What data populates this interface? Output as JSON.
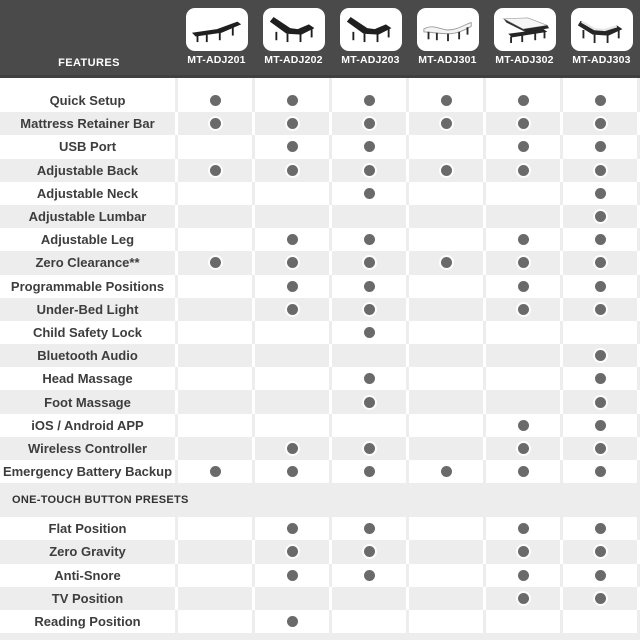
{
  "chart_data": {
    "type": "table",
    "row_header_label": "FEATURES",
    "columns": [
      {
        "label": "MT-ADJ201",
        "icon": "bed-flat-dark-icon"
      },
      {
        "label": "MT-ADJ202",
        "icon": "bed-lounge-dark-icon"
      },
      {
        "label": "MT-ADJ203",
        "icon": "bed-lounge-dark-icon"
      },
      {
        "label": "MT-ADJ301",
        "icon": "bed-flat-light-icon"
      },
      {
        "label": "MT-ADJ302",
        "icon": "bed-incline-light-icon"
      },
      {
        "label": "MT-ADJ303",
        "icon": "bed-lounge-light-icon"
      }
    ],
    "cell_marker": "dot-icon",
    "sections": [
      {
        "heading": null,
        "rows": [
          {
            "feature": "Quick Setup",
            "availability": [
              true,
              true,
              true,
              true,
              true,
              true
            ]
          },
          {
            "feature": "Mattress Retainer Bar",
            "availability": [
              true,
              true,
              true,
              true,
              true,
              true
            ]
          },
          {
            "feature": "USB Port",
            "availability": [
              false,
              true,
              true,
              false,
              true,
              true
            ]
          },
          {
            "feature": "Adjustable Back",
            "availability": [
              true,
              true,
              true,
              true,
              true,
              true
            ]
          },
          {
            "feature": "Adjustable Neck",
            "availability": [
              false,
              false,
              true,
              false,
              false,
              true
            ]
          },
          {
            "feature": "Adjustable Lumbar",
            "availability": [
              false,
              false,
              false,
              false,
              false,
              true
            ]
          },
          {
            "feature": "Adjustable Leg",
            "availability": [
              false,
              true,
              true,
              false,
              true,
              true
            ]
          },
          {
            "feature": "Zero Clearance**",
            "availability": [
              true,
              true,
              true,
              true,
              true,
              true
            ]
          },
          {
            "feature": "Programmable Positions",
            "availability": [
              false,
              true,
              true,
              false,
              true,
              true
            ]
          },
          {
            "feature": "Under-Bed Light",
            "availability": [
              false,
              true,
              true,
              false,
              true,
              true
            ]
          },
          {
            "feature": "Child Safety Lock",
            "availability": [
              false,
              false,
              true,
              false,
              false,
              false
            ]
          },
          {
            "feature": "Bluetooth Audio",
            "availability": [
              false,
              false,
              false,
              false,
              false,
              true
            ]
          },
          {
            "feature": "Head Massage",
            "availability": [
              false,
              false,
              true,
              false,
              false,
              true
            ]
          },
          {
            "feature": "Foot Massage",
            "availability": [
              false,
              false,
              true,
              false,
              false,
              true
            ]
          },
          {
            "feature": "iOS / Android APP",
            "availability": [
              false,
              false,
              false,
              false,
              true,
              true
            ]
          },
          {
            "feature": "Wireless Controller",
            "availability": [
              false,
              true,
              true,
              false,
              true,
              true
            ]
          },
          {
            "feature": "Emergency Battery Backup",
            "availability": [
              true,
              true,
              true,
              true,
              true,
              true
            ]
          }
        ]
      },
      {
        "heading": "ONE-TOUCH BUTTON PRESETS",
        "rows": [
          {
            "feature": "Flat Position",
            "availability": [
              false,
              true,
              true,
              false,
              true,
              true
            ]
          },
          {
            "feature": "Zero Gravity",
            "availability": [
              false,
              true,
              true,
              false,
              true,
              true
            ]
          },
          {
            "feature": "Anti-Snore",
            "availability": [
              false,
              true,
              true,
              false,
              true,
              true
            ]
          },
          {
            "feature": "TV Position",
            "availability": [
              false,
              false,
              false,
              false,
              true,
              true
            ]
          },
          {
            "feature": "Reading Position",
            "availability": [
              false,
              true,
              false,
              false,
              false,
              false
            ]
          }
        ]
      }
    ],
    "colors": {
      "header_bg": "#4a4a4a",
      "stripe": "#ededed",
      "dot": "#6a6a6a",
      "feature_text": "#3d3d3d",
      "header_text": "#ffffff"
    }
  }
}
